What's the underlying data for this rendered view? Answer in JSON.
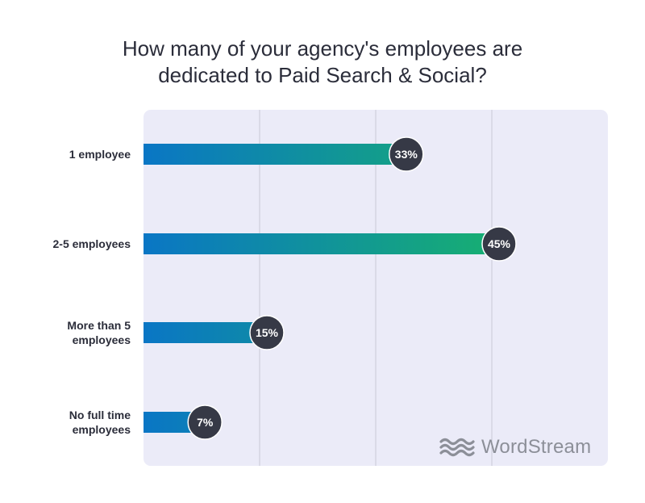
{
  "title_lines": [
    "How many of your agency's employees are",
    "dedicated to Paid Search & Social?"
  ],
  "brand": {
    "name": "WordStream",
    "icon": "wordstream-waves-icon"
  },
  "colors": {
    "panel": "#ebebf8",
    "grid": "#c9c9d6",
    "bar_start": "#0a76c5",
    "bar_end": "#18b46a",
    "badge": "#363946",
    "badge_text": "#ffffff",
    "logo": "#8c8f98"
  },
  "chart_data": {
    "type": "bar",
    "orientation": "horizontal",
    "title": "How many of your agency's employees are dedicated to Paid Search & Social?",
    "categories": [
      [
        "1 employee"
      ],
      [
        "2-5 employees"
      ],
      [
        "More than 5",
        "employees"
      ],
      [
        "No full time",
        "employees"
      ]
    ],
    "values": [
      33,
      45,
      15,
      7
    ],
    "value_labels": [
      "33%",
      "45%",
      "15%",
      "7%"
    ],
    "xlim": [
      0,
      60
    ],
    "grid": true,
    "gridlines_at": [
      0,
      15,
      30,
      45
    ],
    "unit": "%"
  }
}
